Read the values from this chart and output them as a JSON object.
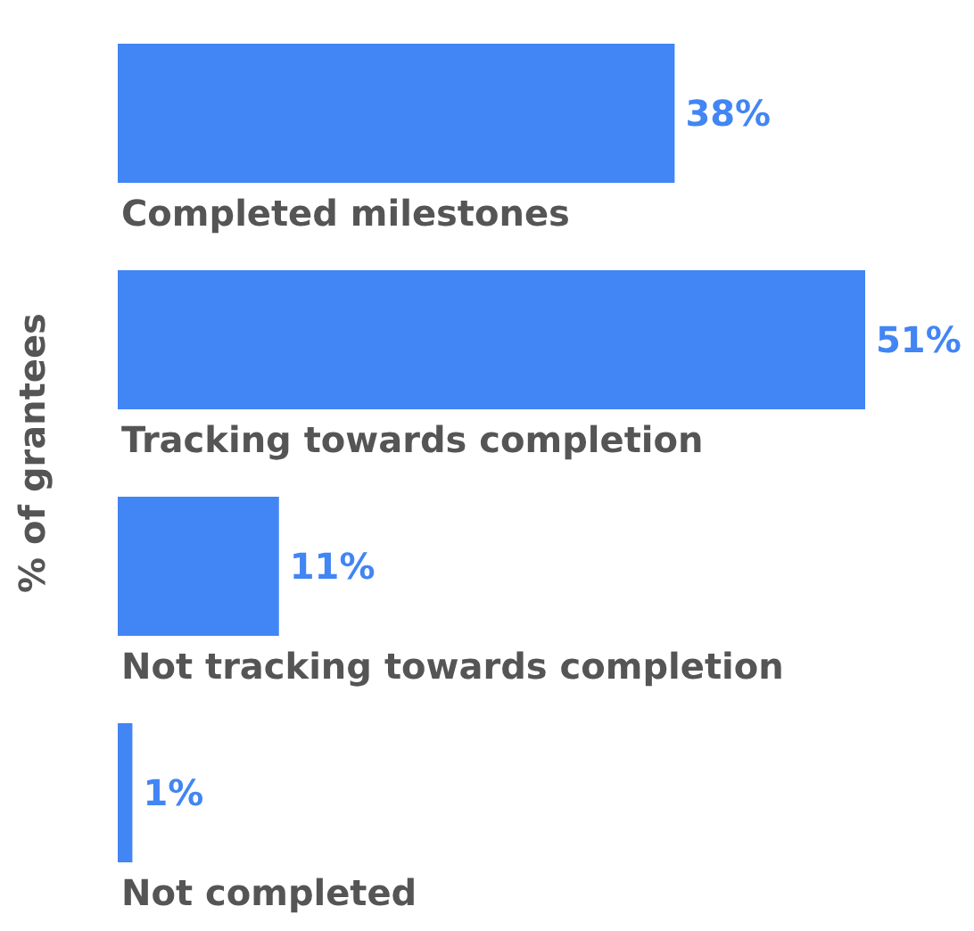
{
  "chart_data": {
    "type": "bar",
    "orientation": "horizontal",
    "ylabel": "% of grantees",
    "categories": [
      "Completed milestones",
      "Tracking towards completion",
      "Not tracking towards completion",
      "Not completed"
    ],
    "values": [
      38,
      51,
      11,
      1
    ],
    "value_labels": [
      "38%",
      "51%",
      "11%",
      "1%"
    ],
    "color": "#4285f4"
  }
}
